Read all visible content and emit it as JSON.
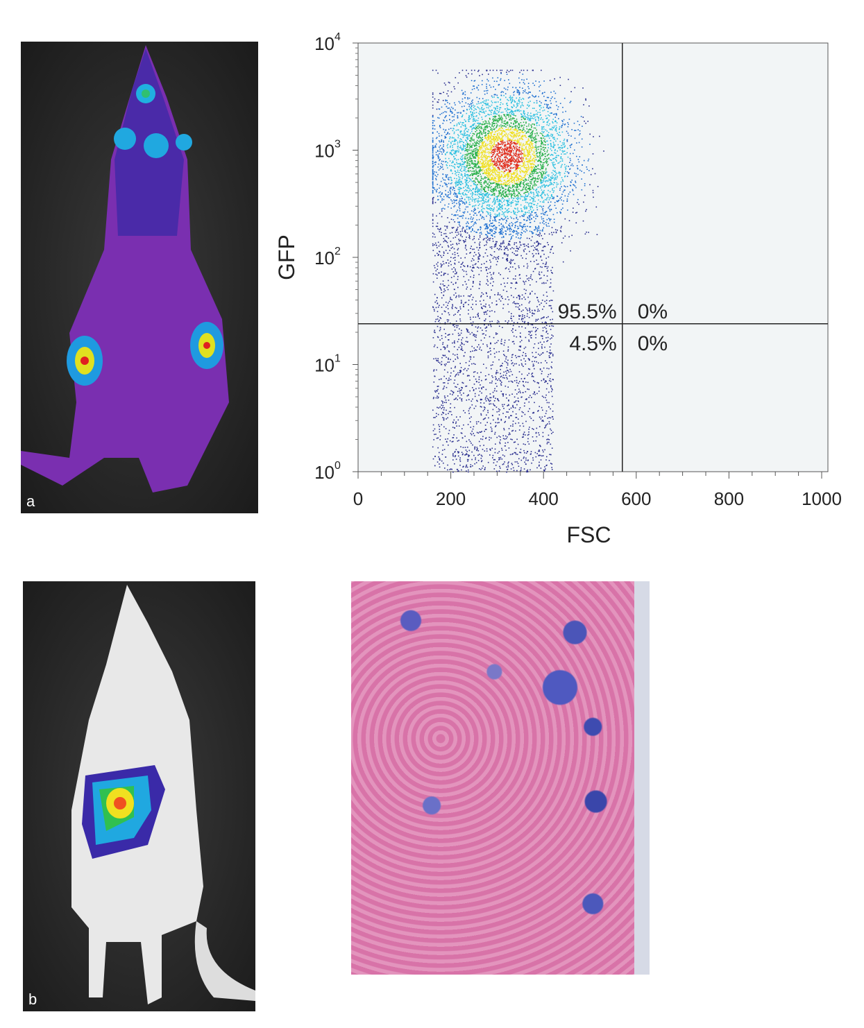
{
  "panels": {
    "a_label": "a",
    "b_label": "b"
  },
  "chart_data": {
    "type": "scatter",
    "subtype": "flow-cytometry density dot plot",
    "xlabel": "FSC",
    "ylabel": "GFP",
    "xlim": [
      0,
      1000
    ],
    "ylim": [
      1,
      10000
    ],
    "yscale": "log",
    "x_ticks": [
      "0",
      "200",
      "400",
      "600",
      "800",
      "1000"
    ],
    "y_ticks": [
      {
        "base": "10",
        "exp": "0"
      },
      {
        "base": "10",
        "exp": "1"
      },
      {
        "base": "10",
        "exp": "2"
      },
      {
        "base": "10",
        "exp": "3"
      },
      {
        "base": "10",
        "exp": "4"
      }
    ],
    "gates": {
      "x": 570,
      "y": 24
    },
    "quadrants": {
      "upper_left": "95.5%",
      "upper_right": "0%",
      "lower_left": "4.5%",
      "lower_right": "0%"
    },
    "background": "#f2f5f6",
    "density_colors": [
      "#2b2f8f",
      "#1f6fd0",
      "#2ec0e0",
      "#29b04a",
      "#f0e020",
      "#e03020"
    ],
    "grid": false,
    "legend": "none"
  }
}
